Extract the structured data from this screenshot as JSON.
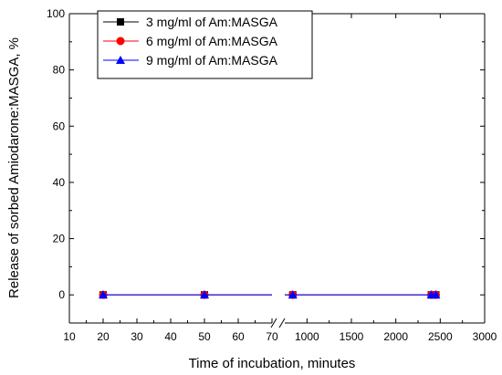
{
  "chart_data": {
    "type": "line",
    "xlabel": "Time of incubation, minutes",
    "ylabel": "Release of sorbed Amiodarone:MASGA, %",
    "ylim": [
      -10,
      100
    ],
    "yticks": [
      "0",
      "20",
      "40",
      "60",
      "80",
      "100"
    ],
    "x_axis_broken": true,
    "x_segments": [
      {
        "range": [
          10,
          70
        ],
        "ticks": [
          "10",
          "20",
          "30",
          "40",
          "50",
          "60",
          "70"
        ]
      },
      {
        "range": [
          750,
          3000
        ],
        "ticks": [
          "1000",
          "1500",
          "2000",
          "2500",
          "3000"
        ]
      }
    ],
    "legend_position": "top-left",
    "series": [
      {
        "name": "3 mg/ml of Am:MASGA",
        "marker": "square",
        "color": "#000000",
        "x": [
          20,
          50,
          840,
          2400,
          2450
        ],
        "y": [
          0,
          0,
          0,
          0,
          0
        ]
      },
      {
        "name": "6 mg/ml of Am:MASGA",
        "marker": "circle",
        "color": "#ff0000",
        "x": [
          20,
          50,
          840,
          2400,
          2450
        ],
        "y": [
          0,
          0,
          0,
          0,
          0
        ]
      },
      {
        "name": "9 mg/ml of Am:MASGA",
        "marker": "triangle",
        "color": "#0000ff",
        "x": [
          20,
          50,
          840,
          2400,
          2450
        ],
        "y": [
          0,
          0,
          0,
          0,
          0
        ]
      }
    ]
  }
}
